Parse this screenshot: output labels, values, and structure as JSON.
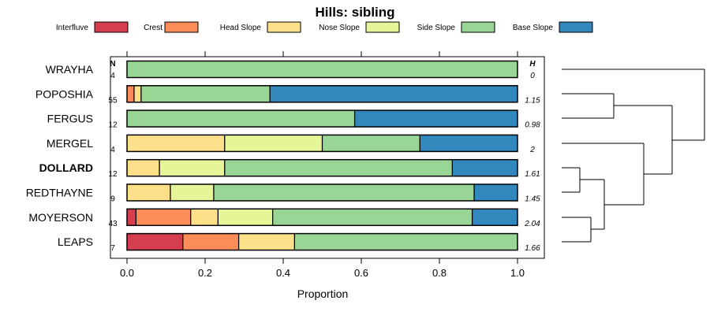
{
  "chart_data": {
    "type": "bar",
    "stacked": true,
    "orientation": "horizontal",
    "title": "Hills: sibling",
    "xlabel": "Proportion",
    "ylabel": "",
    "xlim": [
      0,
      1
    ],
    "x_ticks": [
      "0.0",
      "0.2",
      "0.4",
      "0.6",
      "0.8",
      "1.0"
    ],
    "x_tick_values": [
      0,
      0.2,
      0.4,
      0.6,
      0.8,
      1.0
    ],
    "n_header": "N",
    "h_header": "H",
    "legend_placement": "top",
    "categories": [
      "Interfluve",
      "Crest",
      "Head Slope",
      "Nose Slope",
      "Side Slope",
      "Base Slope"
    ],
    "colors": [
      "#D53E4F",
      "#FC8D59",
      "#FEE08B",
      "#E6F598",
      "#99D594",
      "#3288BD"
    ],
    "rows": [
      {
        "name": "WRAYHA",
        "bold": false,
        "n": "4",
        "h": "0",
        "values": [
          0,
          0,
          0,
          0,
          1.0,
          0
        ]
      },
      {
        "name": "POPOSHIA",
        "bold": false,
        "n": "55",
        "h": "1.15",
        "values": [
          0,
          0.018,
          0.018,
          0,
          0.33,
          0.634
        ]
      },
      {
        "name": "FERGUS",
        "bold": false,
        "n": "12",
        "h": "0.98",
        "values": [
          0,
          0,
          0,
          0,
          0.583,
          0.417
        ]
      },
      {
        "name": "MERGEL",
        "bold": false,
        "n": "4",
        "h": "2",
        "values": [
          0,
          0,
          0.25,
          0.25,
          0.25,
          0.25
        ]
      },
      {
        "name": "DOLLARD",
        "bold": true,
        "n": "12",
        "h": "1.61",
        "values": [
          0,
          0,
          0.083,
          0.167,
          0.583,
          0.167
        ]
      },
      {
        "name": "REDTHAYNE",
        "bold": false,
        "n": "9",
        "h": "1.45",
        "values": [
          0,
          0,
          0.111,
          0.111,
          0.667,
          0.111
        ]
      },
      {
        "name": "MOYERSON",
        "bold": false,
        "n": "43",
        "h": "2.04",
        "values": [
          0.023,
          0.14,
          0.07,
          0.14,
          0.511,
          0.116
        ]
      },
      {
        "name": "LEAPS",
        "bold": false,
        "n": "7",
        "h": "1.66",
        "values": [
          0.143,
          0.143,
          0.143,
          0,
          0.571,
          0
        ]
      }
    ]
  }
}
